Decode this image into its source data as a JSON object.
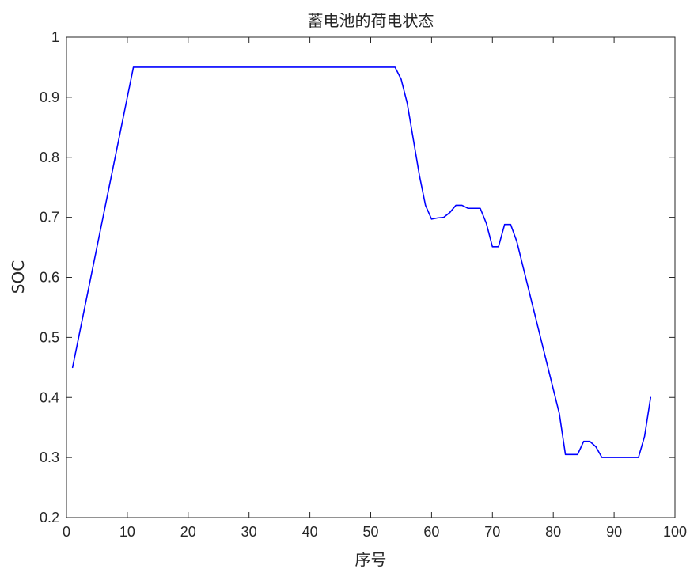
{
  "chart_data": {
    "type": "line",
    "title": "蓄电池的荷电状态",
    "xlabel": "序号",
    "ylabel": "SOC",
    "xlim": [
      0,
      100
    ],
    "ylim": [
      0.2,
      1.0
    ],
    "xticks": [
      0,
      10,
      20,
      30,
      40,
      50,
      60,
      70,
      80,
      90,
      100
    ],
    "yticks": [
      0.2,
      0.3,
      0.4,
      0.5,
      0.6,
      0.7,
      0.8,
      0.9,
      1.0
    ],
    "xtick_labels": [
      "0",
      "10",
      "20",
      "30",
      "40",
      "50",
      "60",
      "70",
      "80",
      "90",
      "100"
    ],
    "ytick_labels": [
      "0.2",
      "0.3",
      "0.4",
      "0.5",
      "0.6",
      "0.7",
      "0.8",
      "0.9",
      "1"
    ],
    "grid": false,
    "series": [
      {
        "color": "#0000ff",
        "x": [
          1,
          11,
          54,
          55,
          56,
          57,
          58,
          59,
          60,
          61,
          62,
          63,
          64,
          65,
          66,
          67,
          68,
          69,
          70,
          71,
          72,
          73,
          74,
          75,
          76,
          77,
          78,
          79,
          80,
          81,
          82,
          83,
          84,
          85,
          86,
          87,
          88,
          89,
          90,
          91,
          92,
          93,
          94,
          95,
          96
        ],
        "y": [
          0.45,
          0.95,
          0.95,
          0.93,
          0.89,
          0.83,
          0.77,
          0.72,
          0.697,
          0.699,
          0.7,
          0.708,
          0.72,
          0.72,
          0.715,
          0.715,
          0.715,
          0.69,
          0.651,
          0.651,
          0.688,
          0.688,
          0.66,
          0.619,
          0.578,
          0.537,
          0.496,
          0.455,
          0.414,
          0.373,
          0.305,
          0.305,
          0.305,
          0.327,
          0.327,
          0.318,
          0.3,
          0.3,
          0.3,
          0.3,
          0.3,
          0.3,
          0.3,
          0.335,
          0.4
        ]
      }
    ]
  }
}
